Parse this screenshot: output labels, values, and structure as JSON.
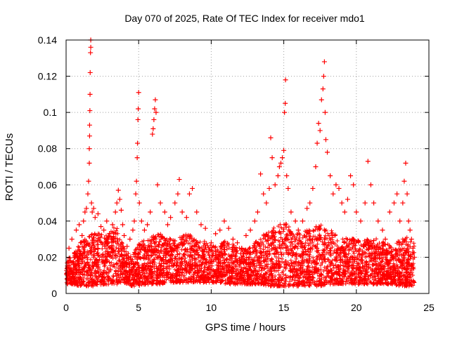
{
  "chart_data": {
    "type": "scatter",
    "title": "Day 070 of 2025, Rate Of TEC Index for receiver mdo1",
    "xlabel": "GPS time / hours",
    "ylabel": "ROTI / TECUs",
    "xlim": [
      0,
      25
    ],
    "ylim": [
      0,
      0.14
    ],
    "xticks": [
      0,
      5,
      10,
      15,
      20,
      25
    ],
    "yticks": [
      0,
      0.02,
      0.04,
      0.06,
      0.08,
      0.1,
      0.12,
      0.14
    ],
    "xtick_labels": [
      "0",
      "5",
      "10",
      "15",
      "20",
      "25"
    ],
    "ytick_labels": [
      "0",
      "0.02",
      "0.04",
      "0.06",
      "0.08",
      "0.1",
      "0.12",
      "0.14"
    ],
    "grid": true,
    "legend": false,
    "marker": "+",
    "color": "#ff0000",
    "series": [
      {
        "points": [
          [
            0.1,
            0.012
          ],
          [
            0.2,
            0.025
          ],
          [
            0.3,
            0.018
          ],
          [
            0.4,
            0.03
          ],
          [
            0.5,
            0.016
          ],
          [
            0.6,
            0.022
          ],
          [
            0.7,
            0.035
          ],
          [
            0.8,
            0.02
          ],
          [
            0.9,
            0.038
          ],
          [
            1.0,
            0.028
          ],
          [
            1.1,
            0.032
          ],
          [
            1.2,
            0.04
          ],
          [
            1.3,
            0.045
          ],
          [
            1.4,
            0.047
          ],
          [
            1.5,
            0.055
          ],
          [
            1.55,
            0.062
          ],
          [
            1.6,
            0.072
          ],
          [
            1.6,
            0.08
          ],
          [
            1.62,
            0.087
          ],
          [
            1.62,
            0.093
          ],
          [
            1.64,
            0.101
          ],
          [
            1.65,
            0.11
          ],
          [
            1.66,
            0.122
          ],
          [
            1.68,
            0.133
          ],
          [
            1.7,
            0.136
          ],
          [
            1.7,
            0.14
          ],
          [
            1.75,
            0.05
          ],
          [
            1.8,
            0.045
          ],
          [
            1.9,
            0.047
          ],
          [
            2.0,
            0.042
          ],
          [
            2.2,
            0.044
          ],
          [
            2.4,
            0.037
          ],
          [
            2.6,
            0.035
          ],
          [
            2.8,
            0.04
          ],
          [
            3.0,
            0.033
          ],
          [
            3.2,
            0.038
          ],
          [
            3.4,
            0.045
          ],
          [
            3.5,
            0.05
          ],
          [
            3.6,
            0.057
          ],
          [
            3.7,
            0.052
          ],
          [
            3.8,
            0.046
          ],
          [
            3.9,
            0.038
          ],
          [
            4.0,
            0.032
          ],
          [
            4.2,
            0.026
          ],
          [
            4.4,
            0.03
          ],
          [
            4.6,
            0.035
          ],
          [
            4.7,
            0.04
          ],
          [
            4.8,
            0.055
          ],
          [
            4.85,
            0.062
          ],
          [
            4.9,
            0.075
          ],
          [
            4.92,
            0.083
          ],
          [
            4.95,
            0.096
          ],
          [
            4.97,
            0.102
          ],
          [
            5.0,
            0.111
          ],
          [
            5.05,
            0.05
          ],
          [
            5.2,
            0.04
          ],
          [
            5.4,
            0.035
          ],
          [
            5.6,
            0.038
          ],
          [
            5.8,
            0.045
          ],
          [
            5.95,
            0.088
          ],
          [
            6.0,
            0.091
          ],
          [
            6.05,
            0.096
          ],
          [
            6.1,
            0.102
          ],
          [
            6.15,
            0.107
          ],
          [
            6.2,
            0.1
          ],
          [
            6.3,
            0.06
          ],
          [
            6.5,
            0.05
          ],
          [
            6.8,
            0.045
          ],
          [
            7.0,
            0.038
          ],
          [
            7.2,
            0.042
          ],
          [
            7.5,
            0.05
          ],
          [
            7.7,
            0.055
          ],
          [
            7.8,
            0.063
          ],
          [
            8.0,
            0.045
          ],
          [
            8.3,
            0.042
          ],
          [
            8.5,
            0.055
          ],
          [
            8.7,
            0.058
          ],
          [
            9.0,
            0.045
          ],
          [
            9.3,
            0.038
          ],
          [
            9.6,
            0.036
          ],
          [
            10.0,
            0.028
          ],
          [
            10.3,
            0.033
          ],
          [
            10.6,
            0.035
          ],
          [
            10.9,
            0.04
          ],
          [
            11.2,
            0.036
          ],
          [
            11.5,
            0.03
          ],
          [
            11.8,
            0.028
          ],
          [
            12.1,
            0.025
          ],
          [
            12.4,
            0.032
          ],
          [
            12.7,
            0.035
          ],
          [
            13.0,
            0.04
          ],
          [
            13.2,
            0.045
          ],
          [
            13.4,
            0.066
          ],
          [
            13.6,
            0.055
          ],
          [
            13.8,
            0.05
          ],
          [
            14.0,
            0.058
          ],
          [
            14.1,
            0.086
          ],
          [
            14.2,
            0.075
          ],
          [
            14.4,
            0.06
          ],
          [
            14.6,
            0.065
          ],
          [
            14.7,
            0.07
          ],
          [
            14.8,
            0.072
          ],
          [
            14.9,
            0.075
          ],
          [
            15.0,
            0.079
          ],
          [
            15.05,
            0.1
          ],
          [
            15.1,
            0.105
          ],
          [
            15.12,
            0.118
          ],
          [
            15.2,
            0.065
          ],
          [
            15.3,
            0.058
          ],
          [
            15.5,
            0.045
          ],
          [
            15.8,
            0.04
          ],
          [
            16.0,
            0.035
          ],
          [
            16.3,
            0.04
          ],
          [
            16.6,
            0.047
          ],
          [
            16.8,
            0.05
          ],
          [
            17.0,
            0.058
          ],
          [
            17.2,
            0.07
          ],
          [
            17.3,
            0.083
          ],
          [
            17.4,
            0.094
          ],
          [
            17.5,
            0.09
          ],
          [
            17.6,
            0.107
          ],
          [
            17.7,
            0.113
          ],
          [
            17.75,
            0.12
          ],
          [
            17.8,
            0.128
          ],
          [
            17.85,
            0.1
          ],
          [
            17.9,
            0.085
          ],
          [
            18.0,
            0.078
          ],
          [
            18.2,
            0.065
          ],
          [
            18.4,
            0.055
          ],
          [
            18.6,
            0.06
          ],
          [
            18.8,
            0.058
          ],
          [
            19.0,
            0.05
          ],
          [
            19.2,
            0.045
          ],
          [
            19.4,
            0.052
          ],
          [
            19.6,
            0.065
          ],
          [
            19.8,
            0.06
          ],
          [
            20.0,
            0.045
          ],
          [
            20.3,
            0.04
          ],
          [
            20.6,
            0.05
          ],
          [
            20.8,
            0.073
          ],
          [
            21.0,
            0.06
          ],
          [
            21.2,
            0.05
          ],
          [
            21.5,
            0.04
          ],
          [
            21.8,
            0.035
          ],
          [
            22.0,
            0.03
          ],
          [
            22.3,
            0.045
          ],
          [
            22.6,
            0.05
          ],
          [
            22.8,
            0.055
          ],
          [
            23.0,
            0.04
          ],
          [
            23.2,
            0.05
          ],
          [
            23.3,
            0.062
          ],
          [
            23.4,
            0.072
          ],
          [
            23.5,
            0.055
          ],
          [
            23.6,
            0.04
          ],
          [
            23.7,
            0.035
          ],
          [
            23.8,
            0.03
          ],
          [
            23.9,
            0.025
          ],
          [
            24.0,
            0.02
          ]
        ],
        "band": {
          "x": [
            0,
            0.5,
            1,
            1.5,
            2,
            2.5,
            3,
            3.5,
            4,
            4.5,
            5,
            5.5,
            6,
            6.5,
            7,
            7.5,
            8,
            8.5,
            9,
            9.5,
            10,
            10.5,
            11,
            11.5,
            12,
            12.5,
            13,
            13.5,
            14,
            14.5,
            15,
            15.5,
            16,
            16.5,
            17,
            17.5,
            18,
            18.5,
            19,
            19.5,
            20,
            20.5,
            21,
            21.5,
            22,
            22.5,
            23,
            23.5,
            24
          ],
          "upper": [
            0.02,
            0.022,
            0.028,
            0.032,
            0.035,
            0.033,
            0.034,
            0.038,
            0.025,
            0.02,
            0.028,
            0.03,
            0.032,
            0.033,
            0.03,
            0.031,
            0.032,
            0.033,
            0.03,
            0.029,
            0.027,
            0.026,
            0.03,
            0.028,
            0.025,
            0.024,
            0.028,
            0.032,
            0.035,
            0.037,
            0.04,
            0.036,
            0.033,
            0.035,
            0.037,
            0.038,
            0.036,
            0.034,
            0.03,
            0.031,
            0.03,
            0.029,
            0.031,
            0.03,
            0.028,
            0.027,
            0.03,
            0.031,
            0.028
          ],
          "lower": [
            0.005,
            0.005,
            0.004,
            0.004,
            0.004,
            0.005,
            0.005,
            0.005,
            0.006,
            0.004,
            0.004,
            0.005,
            0.005,
            0.005,
            0.006,
            0.006,
            0.006,
            0.006,
            0.006,
            0.006,
            0.006,
            0.006,
            0.005,
            0.005,
            0.005,
            0.005,
            0.005,
            0.005,
            0.004,
            0.004,
            0.004,
            0.004,
            0.004,
            0.004,
            0.004,
            0.004,
            0.005,
            0.005,
            0.005,
            0.005,
            0.005,
            0.005,
            0.005,
            0.005,
            0.005,
            0.005,
            0.004,
            0.004,
            0.004
          ]
        }
      }
    ]
  }
}
